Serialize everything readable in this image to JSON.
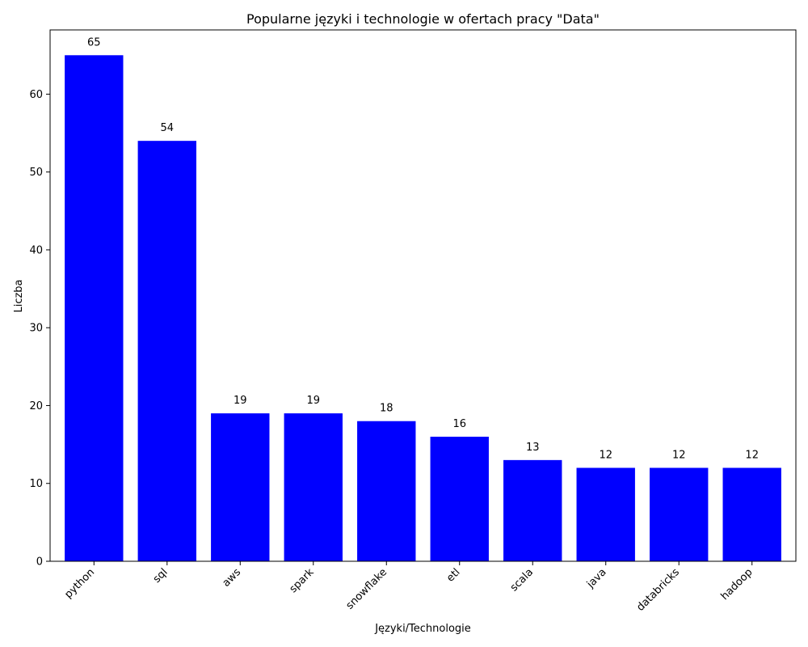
{
  "chart_data": {
    "type": "bar",
    "title": "Popularne języki i technologie w ofertach pracy \"Data\"",
    "xlabel": "Języki/Technologie",
    "ylabel": "Liczba",
    "categories": [
      "python",
      "sql",
      "aws",
      "spark",
      "snowflake",
      "etl",
      "scala",
      "java",
      "databricks",
      "hadoop"
    ],
    "values": [
      65,
      54,
      19,
      19,
      18,
      16,
      13,
      12,
      12,
      12
    ],
    "ylim": [
      0,
      68.25
    ],
    "yticks": [
      0,
      10,
      20,
      30,
      40,
      50,
      60
    ],
    "bar_color": "#0000ff",
    "grid": false,
    "data_labels": true
  }
}
